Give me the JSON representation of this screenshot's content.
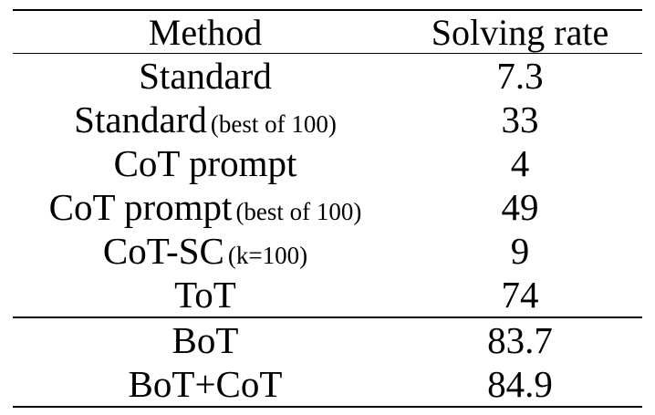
{
  "table": {
    "headers": [
      "Method",
      "Solving rate"
    ],
    "rows": [
      {
        "method": "Standard",
        "note": "",
        "rate": "7.3"
      },
      {
        "method": "Standard",
        "note": "(best of 100)",
        "rate": "33"
      },
      {
        "method": "CoT prompt",
        "note": "",
        "rate": "4"
      },
      {
        "method": "CoT prompt",
        "note": "(best of 100)",
        "rate": "49"
      },
      {
        "method": "CoT-SC",
        "note": "(k=100)",
        "rate": "9"
      },
      {
        "method": "ToT",
        "note": "",
        "rate": "74"
      }
    ],
    "bottom_rows": [
      {
        "method": "BoT",
        "note": "",
        "rate": "83.7"
      },
      {
        "method": "BoT+CoT",
        "note": "",
        "rate": "84.9"
      }
    ]
  }
}
